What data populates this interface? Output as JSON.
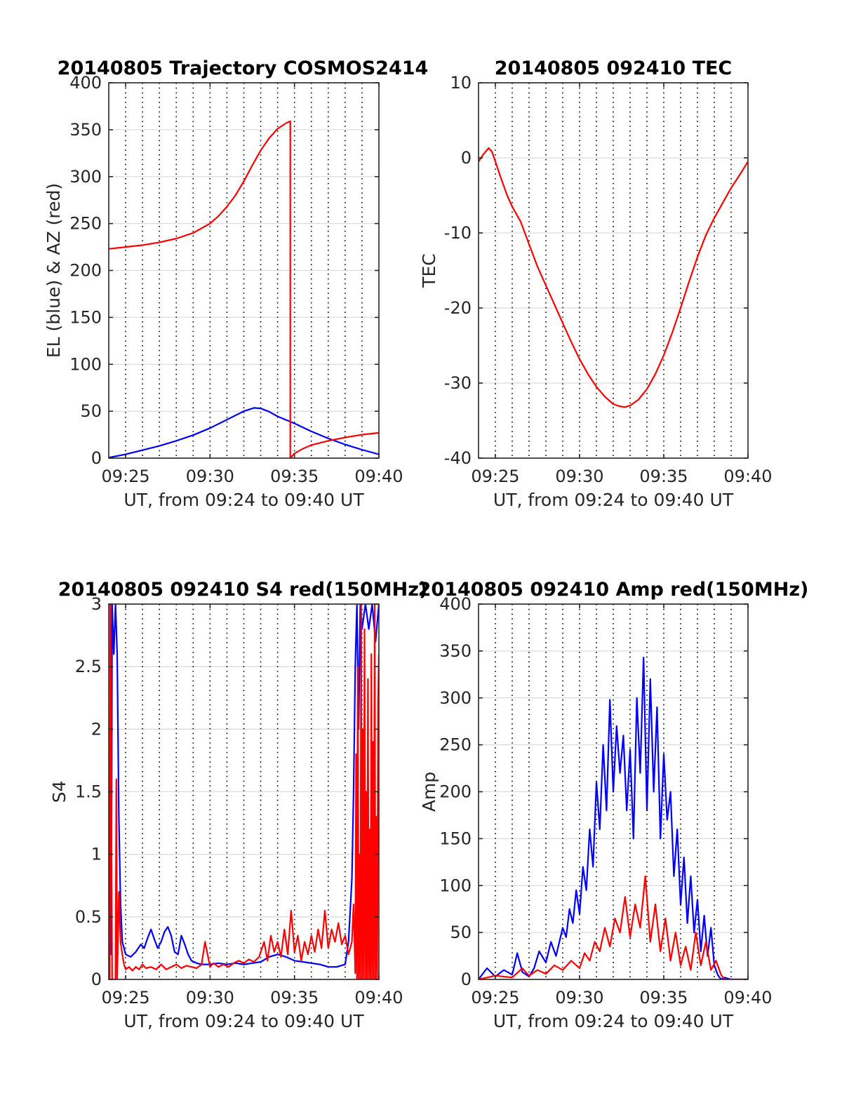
{
  "figure": {
    "background": "#ffffff"
  },
  "chart_data": [
    {
      "id": "trajectory",
      "type": "line",
      "title": "20140805 Trajectory COSMOS2414",
      "xlabel": "UT, from 09:24 to 09:40 UT",
      "ylabel": "EL (blue) & AZ (red)",
      "xlim": [
        24,
        40
      ],
      "ylim": [
        0,
        400
      ],
      "xticks": [
        25,
        30,
        35,
        40
      ],
      "xtick_labels": [
        "09:25",
        "09:30",
        "09:35",
        "09:40"
      ],
      "yticks": [
        0,
        50,
        100,
        150,
        200,
        250,
        300,
        350,
        400
      ],
      "ytick_labels": [
        "0",
        "50",
        "100",
        "150",
        "200",
        "250",
        "300",
        "350",
        "400"
      ],
      "minute_grid": true,
      "series": [
        {
          "name": "EL",
          "color": "#0000ff",
          "x": [
            24.0,
            25.0,
            26.0,
            27.0,
            28.0,
            29.0,
            30.0,
            31.0,
            32.0,
            32.6,
            33.0,
            33.5,
            34.0,
            35.0,
            36.0,
            37.0,
            38.0,
            39.0,
            40.0
          ],
          "y": [
            0.5,
            4,
            8.5,
            13,
            18.5,
            24.5,
            32,
            41,
            50,
            53.5,
            53,
            49.5,
            44.5,
            37,
            28.5,
            21,
            14.5,
            9,
            4
          ]
        },
        {
          "name": "AZ",
          "color": "#ff0000",
          "x": [
            24.0,
            25.0,
            26.0,
            27.0,
            28.0,
            29.0,
            30.0,
            30.5,
            31.0,
            31.5,
            32.0,
            32.5,
            33.0,
            33.5,
            34.0,
            34.5,
            34.75,
            34.75,
            35.0,
            35.5,
            36.0,
            37.0,
            38.0,
            39.0,
            40.0
          ],
          "y": [
            223,
            225,
            227,
            230,
            234,
            240,
            250,
            258,
            268,
            280,
            295,
            312,
            328,
            341,
            351,
            357,
            359,
            0,
            5,
            10,
            14,
            18.5,
            22,
            25,
            27
          ]
        }
      ]
    },
    {
      "id": "tec",
      "type": "line",
      "title": "20140805 092410 TEC",
      "xlabel": "UT, from 09:24 to 09:40 UT",
      "ylabel": "TEC",
      "xlim": [
        24,
        40
      ],
      "ylim": [
        -40,
        10
      ],
      "xticks": [
        25,
        30,
        35,
        40
      ],
      "xtick_labels": [
        "09:25",
        "09:30",
        "09:35",
        "09:40"
      ],
      "yticks": [
        -40,
        -30,
        -20,
        -10,
        0,
        10
      ],
      "ytick_labels": [
        "-40",
        "-30",
        "-20",
        "-10",
        "0",
        "10"
      ],
      "minute_grid": true,
      "series": [
        {
          "name": "TEC",
          "color": "#ff0000",
          "x": [
            24.0,
            24.3,
            24.6,
            24.8,
            25.0,
            25.3,
            25.7,
            26.0,
            26.5,
            27.0,
            27.5,
            28.0,
            28.5,
            29.0,
            29.5,
            30.0,
            30.5,
            31.0,
            31.5,
            32.0,
            32.4,
            32.7,
            33.0,
            33.5,
            34.0,
            34.5,
            35.0,
            35.5,
            36.0,
            36.5,
            37.0,
            37.5,
            38.0,
            38.5,
            39.0,
            39.5,
            40.0
          ],
          "y": [
            -0.5,
            0.5,
            1.3,
            0.8,
            -0.5,
            -2.5,
            -5,
            -6.5,
            -8.5,
            -11.5,
            -14.5,
            -17,
            -19.5,
            -22,
            -24.5,
            -26.8,
            -28.8,
            -30.5,
            -31.8,
            -32.8,
            -33.1,
            -33.2,
            -33.0,
            -32.2,
            -30.8,
            -28.8,
            -26.3,
            -23.3,
            -20.0,
            -16.5,
            -13.2,
            -10.3,
            -8.0,
            -6.0,
            -4.0,
            -2.3,
            -0.5
          ]
        }
      ]
    },
    {
      "id": "s4",
      "type": "line",
      "title": "20140805 092410 S4 red(150MHz)",
      "xlabel": "UT, from 09:24 to 09:40 UT",
      "ylabel": "S4",
      "xlim": [
        24,
        40
      ],
      "ylim": [
        0,
        3
      ],
      "xticks": [
        25,
        30,
        35,
        40
      ],
      "xtick_labels": [
        "09:25",
        "09:30",
        "09:35",
        "09:40"
      ],
      "yticks": [
        0,
        0.5,
        1,
        1.5,
        2,
        2.5,
        3
      ],
      "ytick_labels": [
        "0",
        "0.5",
        "1",
        "1.5",
        "2",
        "2.5",
        "3"
      ],
      "minute_grid": true,
      "series": [
        {
          "name": "blue",
          "color": "#0000ff",
          "x": [
            24.05,
            24.1,
            24.15,
            24.2,
            24.3,
            24.4,
            24.5,
            24.6,
            24.7,
            24.8,
            25.0,
            25.3,
            25.6,
            25.9,
            26.1,
            26.3,
            26.5,
            26.7,
            26.9,
            27.1,
            27.3,
            27.5,
            27.7,
            27.9,
            28.1,
            28.3,
            28.5,
            28.7,
            28.9,
            29.2,
            29.5,
            30.0,
            30.5,
            31.0,
            31.5,
            32.0,
            32.5,
            33.0,
            33.5,
            34.0,
            34.5,
            35.0,
            35.5,
            36.0,
            36.5,
            37.0,
            37.5,
            38.0,
            38.2,
            38.4,
            38.5,
            38.6,
            38.7,
            38.8,
            38.9,
            39.0,
            39.2,
            39.4,
            39.6,
            39.8,
            40.0
          ],
          "y": [
            0,
            3,
            0.2,
            3,
            2.6,
            3,
            2.6,
            1.3,
            0.6,
            0.3,
            0.2,
            0.18,
            0.22,
            0.28,
            0.25,
            0.33,
            0.4,
            0.32,
            0.25,
            0.3,
            0.38,
            0.42,
            0.35,
            0.22,
            0.2,
            0.35,
            0.28,
            0.2,
            0.15,
            0.13,
            0.12,
            0.12,
            0.13,
            0.12,
            0.13,
            0.12,
            0.13,
            0.14,
            0.18,
            0.2,
            0.18,
            0.15,
            0.14,
            0.13,
            0.12,
            0.1,
            0.1,
            0.12,
            0.3,
            0.8,
            1.5,
            2.5,
            3,
            2.0,
            3,
            2.8,
            3,
            2.8,
            3,
            2.7,
            3
          ]
        },
        {
          "name": "red",
          "color": "#ff0000",
          "x": [
            24.05,
            24.1,
            24.2,
            24.3,
            24.4,
            24.45,
            24.5,
            24.6,
            24.7,
            24.8,
            24.9,
            25.0,
            25.2,
            25.4,
            25.6,
            25.8,
            26.0,
            26.2,
            26.5,
            26.8,
            27.1,
            27.4,
            27.7,
            28.0,
            28.3,
            28.6,
            28.9,
            29.2,
            29.5,
            29.7,
            30.0,
            30.2,
            30.5,
            30.8,
            31.1,
            31.4,
            31.7,
            32.0,
            32.3,
            32.6,
            32.9,
            33.2,
            33.4,
            33.6,
            33.8,
            34.0,
            34.2,
            34.4,
            34.6,
            34.8,
            35.0,
            35.2,
            35.4,
            35.6,
            35.8,
            36.0,
            36.2,
            36.4,
            36.6,
            36.8,
            37.0,
            37.2,
            37.4,
            37.6,
            37.8,
            38.0,
            38.2,
            38.4,
            38.5,
            38.6,
            38.65,
            38.7,
            38.75,
            38.8,
            38.85,
            38.9,
            38.95,
            39.0,
            39.05,
            39.1,
            39.15,
            39.2,
            39.25,
            39.3,
            39.35,
            39.4,
            39.45,
            39.5,
            39.55,
            39.6,
            39.65,
            39.7,
            39.75,
            39.8,
            39.85,
            39.9,
            39.95,
            40.0
          ],
          "y": [
            0,
            3,
            0,
            0,
            0,
            1.6,
            0,
            0.7,
            0.3,
            0.2,
            0.12,
            0.08,
            0.1,
            0.07,
            0.1,
            0.08,
            0.12,
            0.09,
            0.1,
            0.08,
            0.12,
            0.08,
            0.1,
            0.12,
            0.09,
            0.11,
            0.1,
            0.09,
            0.12,
            0.3,
            0.1,
            0.13,
            0.1,
            0.12,
            0.1,
            0.13,
            0.15,
            0.13,
            0.16,
            0.14,
            0.18,
            0.3,
            0.15,
            0.35,
            0.22,
            0.3,
            0.18,
            0.4,
            0.2,
            0.55,
            0.22,
            0.35,
            0.15,
            0.3,
            0.2,
            0.35,
            0.22,
            0.4,
            0.25,
            0.55,
            0.25,
            0.4,
            0.3,
            0.45,
            0.28,
            0.35,
            0.2,
            0.3,
            0.6,
            0.05,
            1.8,
            0,
            2.5,
            0,
            1.0,
            0,
            3,
            0,
            2.0,
            0,
            2.8,
            0,
            1.5,
            0,
            2.4,
            0,
            1.2,
            0,
            2.6,
            0,
            1.9,
            0,
            3,
            0,
            1.3,
            0,
            2.2,
            2.6
          ]
        }
      ]
    },
    {
      "id": "amp",
      "type": "line",
      "title": "20140805 092410 Amp red(150MHz)",
      "xlabel": "UT, from 09:24 to 09:40 UT",
      "ylabel": "Amp",
      "xlim": [
        24,
        40
      ],
      "ylim": [
        0,
        400
      ],
      "xticks": [
        25,
        30,
        35,
        40
      ],
      "xtick_labels": [
        "09:25",
        "09:30",
        "09:35",
        "09:40"
      ],
      "yticks": [
        0,
        50,
        100,
        150,
        200,
        250,
        300,
        350,
        400
      ],
      "ytick_labels": [
        "0",
        "50",
        "100",
        "150",
        "200",
        "250",
        "300",
        "350",
        "400"
      ],
      "minute_grid": true,
      "series": [
        {
          "name": "blue",
          "color": "#0000ff",
          "x": [
            24.0,
            24.5,
            25.0,
            25.5,
            26.0,
            26.3,
            26.6,
            27.0,
            27.3,
            27.6,
            28.0,
            28.3,
            28.6,
            29.0,
            29.2,
            29.4,
            29.6,
            29.8,
            30.0,
            30.2,
            30.4,
            30.6,
            30.8,
            31.0,
            31.2,
            31.4,
            31.6,
            31.8,
            32.0,
            32.2,
            32.4,
            32.6,
            32.8,
            33.0,
            33.2,
            33.4,
            33.6,
            33.8,
            34.0,
            34.2,
            34.4,
            34.6,
            34.8,
            35.0,
            35.2,
            35.4,
            35.6,
            35.8,
            36.0,
            36.2,
            36.4,
            36.6,
            36.8,
            37.0,
            37.2,
            37.4,
            37.6,
            37.8,
            38.0,
            38.2,
            38.4,
            38.6,
            39.0,
            40.0
          ],
          "y": [
            0,
            12,
            3,
            10,
            5,
            28,
            8,
            3,
            12,
            30,
            18,
            40,
            25,
            55,
            45,
            75,
            60,
            95,
            70,
            120,
            95,
            160,
            120,
            210,
            160,
            250,
            180,
            298,
            200,
            270,
            220,
            260,
            180,
            245,
            150,
            300,
            220,
            343,
            180,
            320,
            200,
            290,
            150,
            240,
            170,
            200,
            110,
            160,
            80,
            130,
            60,
            110,
            50,
            85,
            30,
            68,
            25,
            55,
            15,
            5,
            0,
            2,
            0,
            0
          ]
        },
        {
          "name": "red",
          "color": "#ff0000",
          "x": [
            24.0,
            25.0,
            26.0,
            26.6,
            27.0,
            27.5,
            28.0,
            28.5,
            29.0,
            29.5,
            30.0,
            30.3,
            30.6,
            30.9,
            31.2,
            31.5,
            31.8,
            32.1,
            32.4,
            32.7,
            33.0,
            33.3,
            33.6,
            33.9,
            34.2,
            34.5,
            34.8,
            35.1,
            35.4,
            35.7,
            36.0,
            36.3,
            36.6,
            36.9,
            37.2,
            37.5,
            37.8,
            38.1,
            38.4,
            38.6,
            39.0,
            40.0
          ],
          "y": [
            0,
            4,
            2,
            12,
            4,
            10,
            6,
            15,
            10,
            20,
            12,
            28,
            20,
            40,
            30,
            55,
            35,
            65,
            50,
            88,
            45,
            80,
            55,
            110,
            40,
            80,
            30,
            65,
            20,
            50,
            15,
            35,
            10,
            50,
            15,
            40,
            10,
            20,
            5,
            0,
            0,
            0
          ]
        }
      ]
    }
  ]
}
